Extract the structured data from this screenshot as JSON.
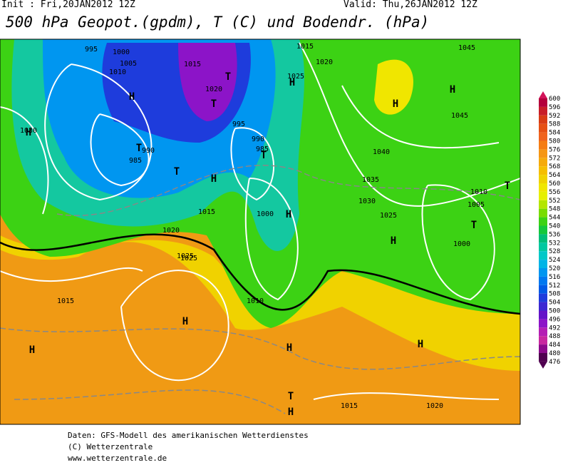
{
  "header": {
    "init": "Init : Fri,20JAN2012 12Z",
    "valid": "Valid: Thu,26JAN2012 12Z",
    "title": "500 hPa Geopot.(gpdm), T (C) und Bodendr. (hPa)"
  },
  "colorbar": {
    "values": [
      600,
      596,
      592,
      588,
      584,
      580,
      576,
      572,
      568,
      564,
      560,
      556,
      552,
      548,
      544,
      540,
      536,
      532,
      528,
      524,
      520,
      516,
      512,
      508,
      504,
      500,
      496,
      492,
      488,
      484,
      480,
      476
    ],
    "colors": [
      "#d2145a",
      "#b4003c",
      "#c81e28",
      "#d83c14",
      "#e65014",
      "#f0641e",
      "#f57d14",
      "#f59614",
      "#f5aa0a",
      "#f5be00",
      "#f0d200",
      "#f0e600",
      "#e6f000",
      "#b4e600",
      "#78dc00",
      "#3cd214",
      "#14c83c",
      "#00be78",
      "#00c8a0",
      "#00c8c8",
      "#00b4e6",
      "#0096f0",
      "#0078f0",
      "#005ae6",
      "#1e3cdc",
      "#3c28d2",
      "#6414c8",
      "#8c14c8",
      "#b41eb4",
      "#c828a0",
      "#8c0a8c",
      "#500050"
    ]
  },
  "map": {
    "labels": [
      "995",
      "1000",
      "1005",
      "1010",
      "1015",
      "1020",
      "1025",
      "1030",
      "H",
      "H",
      "T",
      "T",
      "T",
      "T",
      "T",
      "H",
      "H",
      "H",
      "H",
      "H",
      "H",
      "H",
      "H",
      "T",
      "T",
      "1015",
      "1020",
      "1045",
      "1045",
      "1040",
      "1035",
      "1030",
      "1025",
      "1010",
      "1005",
      "1000",
      "1010",
      "1015",
      "1020",
      "1025",
      "1015",
      "1025",
      "1020",
      "1015",
      "990",
      "985",
      "985",
      "990",
      "995",
      "1000",
      "H",
      "H",
      "T",
      "H"
    ]
  },
  "footer": {
    "line1": "Daten: GFS-Modell des amerikanischen Wetterdienstes",
    "line2": "(C) Wetterzentrale",
    "line3": "www.wetterzentrale.de"
  }
}
